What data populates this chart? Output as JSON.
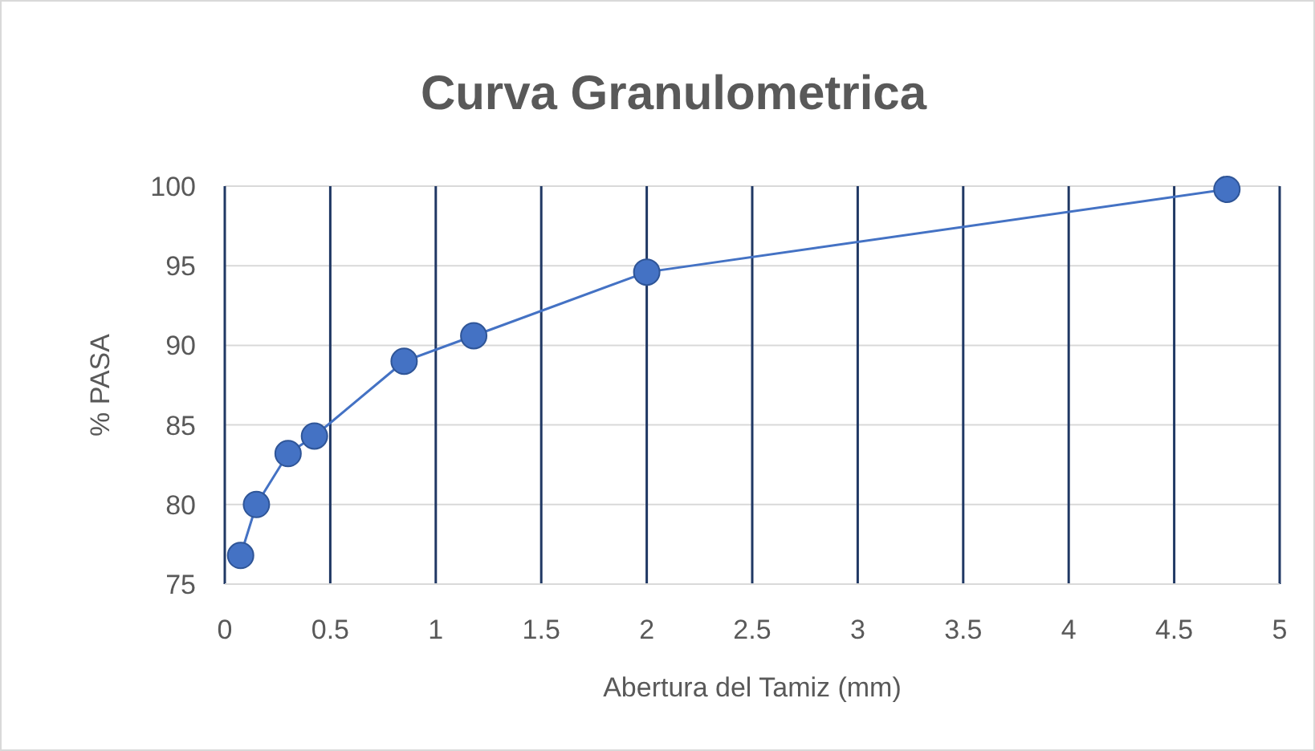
{
  "chart_data": {
    "type": "line",
    "title": "Curva Granulometrica",
    "xlabel": "Abertura del Tamiz (mm)",
    "ylabel": "% PASA",
    "x": [
      0.075,
      0.15,
      0.3,
      0.425,
      0.85,
      1.18,
      2.0,
      4.75
    ],
    "series": [
      {
        "color": "#4472c4",
        "values": [
          76.8,
          80,
          83.2,
          84.3,
          89,
          90.6,
          94.6,
          99.8
        ]
      }
    ],
    "xlim": [
      0,
      5
    ],
    "xticks": [
      0,
      0.5,
      1,
      1.5,
      2,
      2.5,
      3,
      3.5,
      4,
      4.5,
      5
    ],
    "ylim": [
      75,
      100
    ],
    "yticks": [
      75,
      80,
      85,
      90,
      95,
      100
    ],
    "grid": true,
    "marker": "circle",
    "line_style": "solid"
  }
}
